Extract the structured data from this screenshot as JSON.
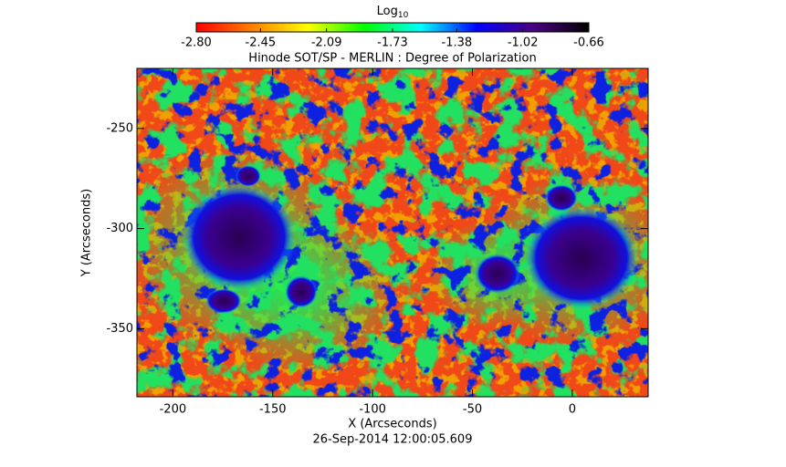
{
  "chart_data": {
    "type": "image",
    "title": "Hinode SOT/SP - MERLIN : Degree of Polarization",
    "colorbar_label": "Log",
    "colorbar_label_sub": "10",
    "colorbar_colors": [
      "#ff0000",
      "#ff8000",
      "#ffff00",
      "#00ff00",
      "#00ffff",
      "#0000ff",
      "#4b0082",
      "#000000"
    ],
    "clim": [
      -2.8,
      -0.66
    ],
    "cticks": [
      {
        "value": -2.8,
        "label": "-2.80"
      },
      {
        "value": -2.45,
        "label": "-2.45"
      },
      {
        "value": -2.09,
        "label": "-2.09"
      },
      {
        "value": -1.73,
        "label": "-1.73"
      },
      {
        "value": -1.38,
        "label": "-1.38"
      },
      {
        "value": -1.02,
        "label": "-1.02"
      },
      {
        "value": -0.66,
        "label": "-0.66"
      }
    ],
    "x_label": "X (Arcseconds)",
    "y_label": "Y (Arcseconds)",
    "xlim": [
      -218,
      38
    ],
    "ylim": [
      -384,
      -220
    ],
    "xticks": [
      -200,
      -150,
      -100,
      -50,
      0
    ],
    "yticks": [
      -250,
      -300,
      -350
    ],
    "date": "26-Sep-2014 12:00:05.609"
  }
}
